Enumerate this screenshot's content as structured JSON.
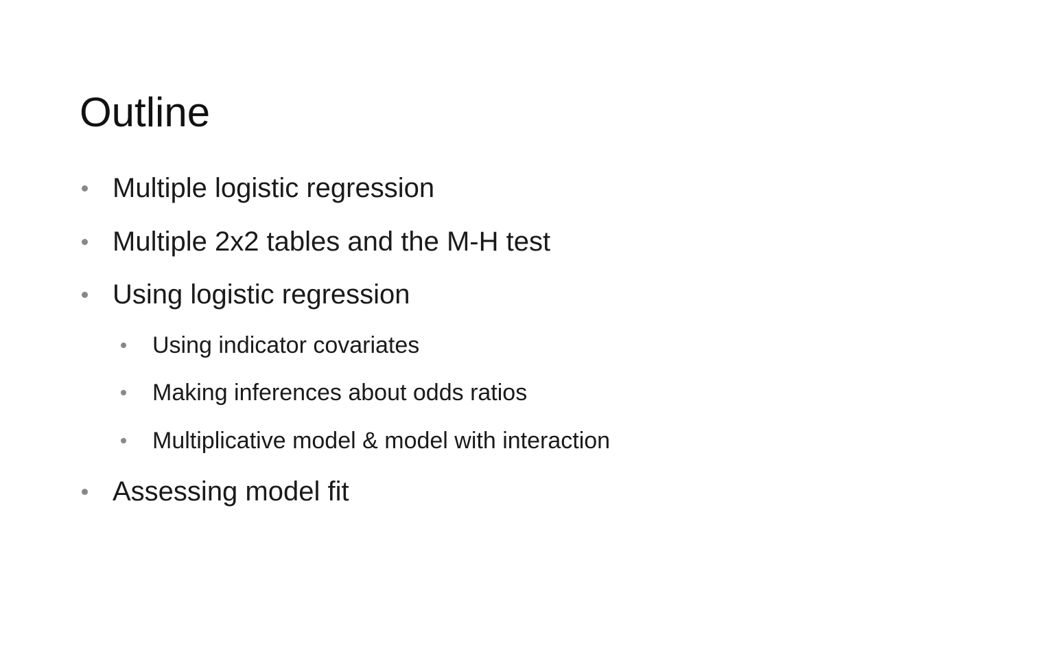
{
  "slide": {
    "title": "Outline",
    "bullets": [
      {
        "text": "Multiple logistic regression",
        "level": 1
      },
      {
        "text": "Multiple 2x2 tables and the M-H test",
        "level": 1
      },
      {
        "text": "Using logistic regression",
        "level": 1
      },
      {
        "text": "Using indicator covariates",
        "level": 2
      },
      {
        "text": "Making inferences about odds ratios",
        "level": 2
      },
      {
        "text": "Multiplicative model & model with interaction",
        "level": 2
      },
      {
        "text": "Assessing model fit",
        "level": 1
      }
    ]
  }
}
